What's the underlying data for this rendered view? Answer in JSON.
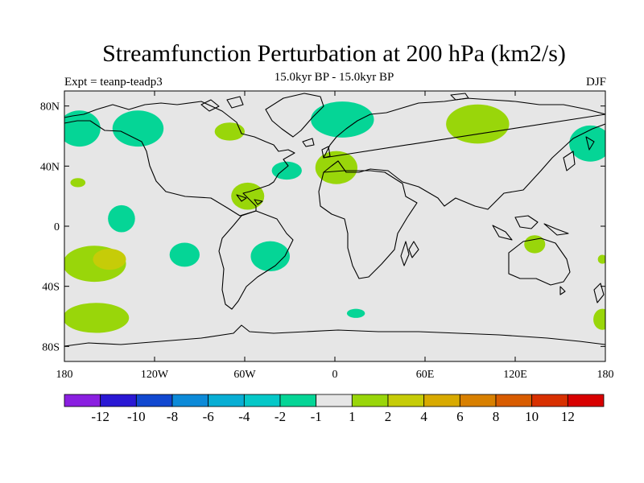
{
  "chart_data": {
    "type": "heatmap",
    "title": "Streamfunction Perturbation at 200 hPa (km2/s)",
    "subtitle": "15.0kyr BP - 15.0kyr BP",
    "left_label": "Expt = teanp-teadp3",
    "right_label": "DJF",
    "x_range": [
      -180,
      180
    ],
    "y_range": [
      -90,
      90
    ],
    "x_ticks": [
      {
        "value": -180,
        "label": "180"
      },
      {
        "value": -120,
        "label": "120W"
      },
      {
        "value": -60,
        "label": "60W"
      },
      {
        "value": 0,
        "label": "0"
      },
      {
        "value": 60,
        "label": "60E"
      },
      {
        "value": 120,
        "label": "120E"
      },
      {
        "value": 180,
        "label": "180"
      }
    ],
    "y_ticks": [
      {
        "value": 80,
        "label": "80N"
      },
      {
        "value": 40,
        "label": "40N"
      },
      {
        "value": 0,
        "label": "0"
      },
      {
        "value": -40,
        "label": "40S"
      },
      {
        "value": -80,
        "label": "80S"
      }
    ],
    "colorbar": {
      "colors": [
        "#8a1fe0",
        "#2a18d4",
        "#1148d0",
        "#0c8ad8",
        "#08aed4",
        "#05c8c8",
        "#05d596",
        "#e6e6e6",
        "#99d60a",
        "#c6cc08",
        "#d8aa00",
        "#d88000",
        "#d85c00",
        "#d83000",
        "#d80000"
      ],
      "labels": [
        "-12",
        "-10",
        "-8",
        "-6",
        "-4",
        "-2",
        "-1",
        "1",
        "2",
        "4",
        "6",
        "8",
        "10",
        "12"
      ]
    },
    "anomaly_regions": [
      {
        "lon": -170,
        "lat": 65,
        "rlon": 14,
        "rlat": 12,
        "value": -1.5
      },
      {
        "lon": 170,
        "lat": 55,
        "rlon": 14,
        "rlat": 12,
        "value": -1.5
      },
      {
        "lon": -131,
        "lat": 65,
        "rlon": 17,
        "rlat": 12,
        "value": -1.5
      },
      {
        "lon": -171,
        "lat": 29,
        "rlon": 5,
        "rlat": 3,
        "value": 1.5
      },
      {
        "lon": -142,
        "lat": 5,
        "rlon": 9,
        "rlat": 9,
        "value": -1.5
      },
      {
        "lon": -160,
        "lat": -25,
        "rlon": 21,
        "rlat": 12,
        "value": 1.5
      },
      {
        "lon": -150,
        "lat": -22,
        "rlon": 11,
        "rlat": 7,
        "value": 3
      },
      {
        "lon": -159,
        "lat": -61,
        "rlon": 22,
        "rlat": 10,
        "value": 1.5
      },
      {
        "lon": -100,
        "lat": -19,
        "rlon": 10,
        "rlat": 8,
        "value": -1.5
      },
      {
        "lon": -58,
        "lat": 20,
        "rlon": 11,
        "rlat": 9,
        "value": 1.5
      },
      {
        "lon": -70,
        "lat": 63,
        "rlon": 10,
        "rlat": 6,
        "value": 1.5
      },
      {
        "lon": -32,
        "lat": 37,
        "rlon": 10,
        "rlat": 6,
        "value": -1.5
      },
      {
        "lon": -43,
        "lat": -20,
        "rlon": 13,
        "rlat": 10,
        "value": -1.5
      },
      {
        "lon": 1,
        "lat": 39,
        "rlon": 14,
        "rlat": 11,
        "value": 1.5
      },
      {
        "lon": 5,
        "lat": 71,
        "rlon": 21,
        "rlat": 12,
        "value": -1.5
      },
      {
        "lon": 95,
        "lat": 68,
        "rlon": 21,
        "rlat": 13,
        "value": 1.5
      },
      {
        "lon": 133,
        "lat": -12,
        "rlon": 7,
        "rlat": 6,
        "value": 1.5
      },
      {
        "lon": 178,
        "lat": -22,
        "rlon": 3,
        "rlat": 3,
        "value": 1.5
      },
      {
        "lon": 178,
        "lat": -62,
        "rlon": 6,
        "rlat": 7,
        "value": 1.5
      },
      {
        "lon": 14,
        "lat": -58,
        "rlon": 6,
        "rlat": 3,
        "value": -1.5
      }
    ]
  }
}
